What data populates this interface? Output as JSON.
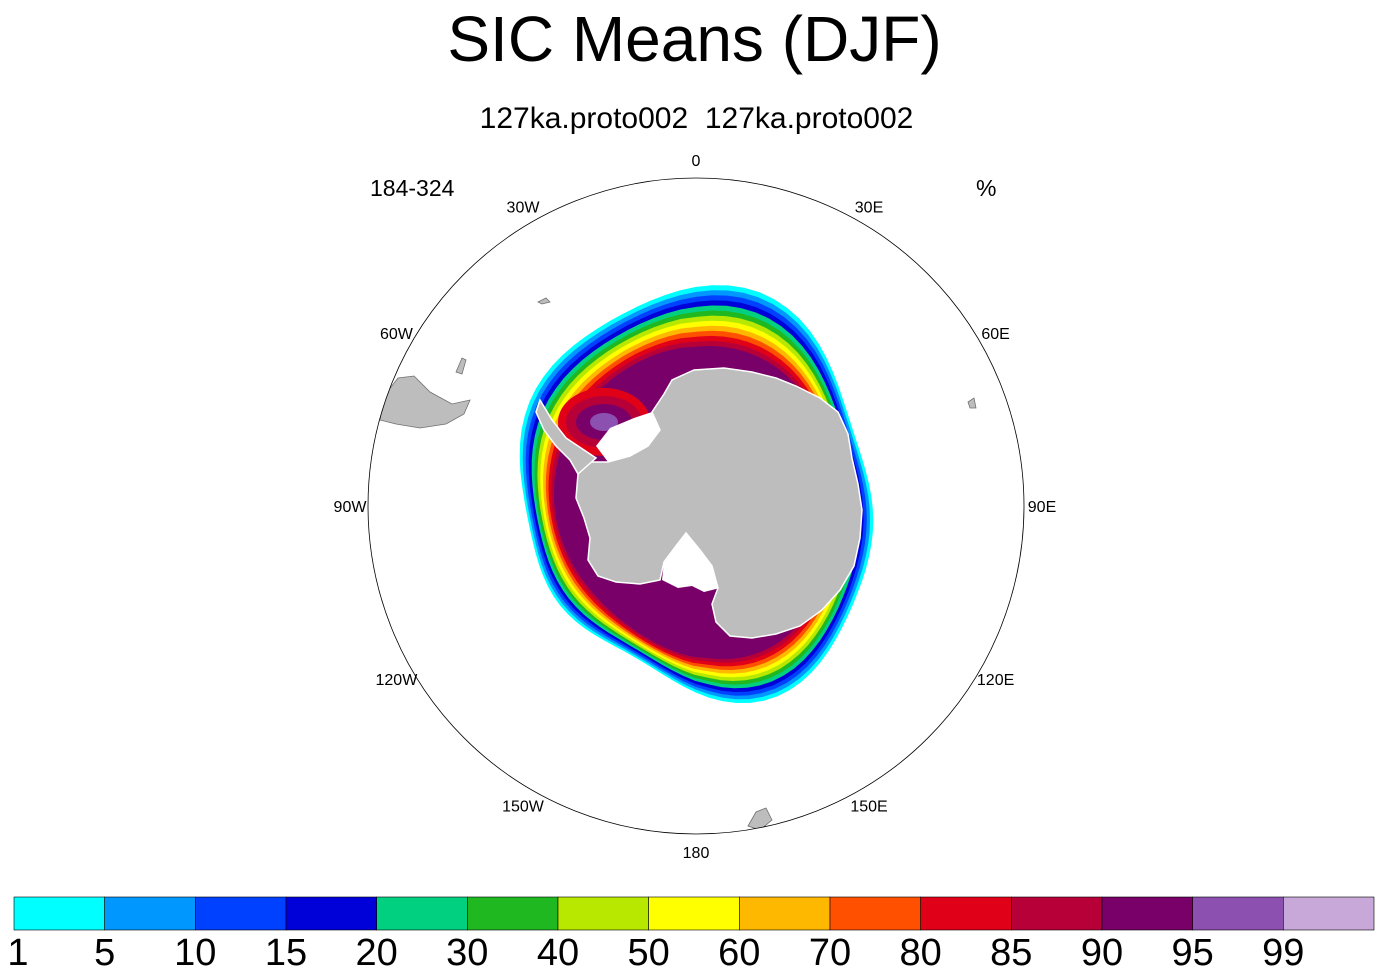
{
  "title": "SIC Means (DJF)",
  "subtitle": "127ka.proto002  127ka.proto002",
  "left_string": "184-324",
  "right_string": "%",
  "map": {
    "projection": "south-polar-stereographic",
    "longitude_labels": [
      "0",
      "30E",
      "60E",
      "90E",
      "120E",
      "150E",
      "180",
      "150W",
      "120W",
      "90W",
      "60W",
      "30W"
    ],
    "land_color": "#bdbdbd",
    "ice_shelf_color": "#ffffff"
  },
  "colorbar": {
    "levels": [
      "1",
      "5",
      "10",
      "15",
      "20",
      "30",
      "40",
      "50",
      "60",
      "70",
      "80",
      "85",
      "90",
      "95",
      "99"
    ],
    "colors": [
      "#00ffff",
      "#0098ff",
      "#0040ff",
      "#0000d8",
      "#00d080",
      "#20b820",
      "#b8e800",
      "#ffff00",
      "#ffb800",
      "#ff5000",
      "#e00018",
      "#b80038",
      "#780068",
      "#8c50b0",
      "#c8a8d8"
    ]
  }
}
